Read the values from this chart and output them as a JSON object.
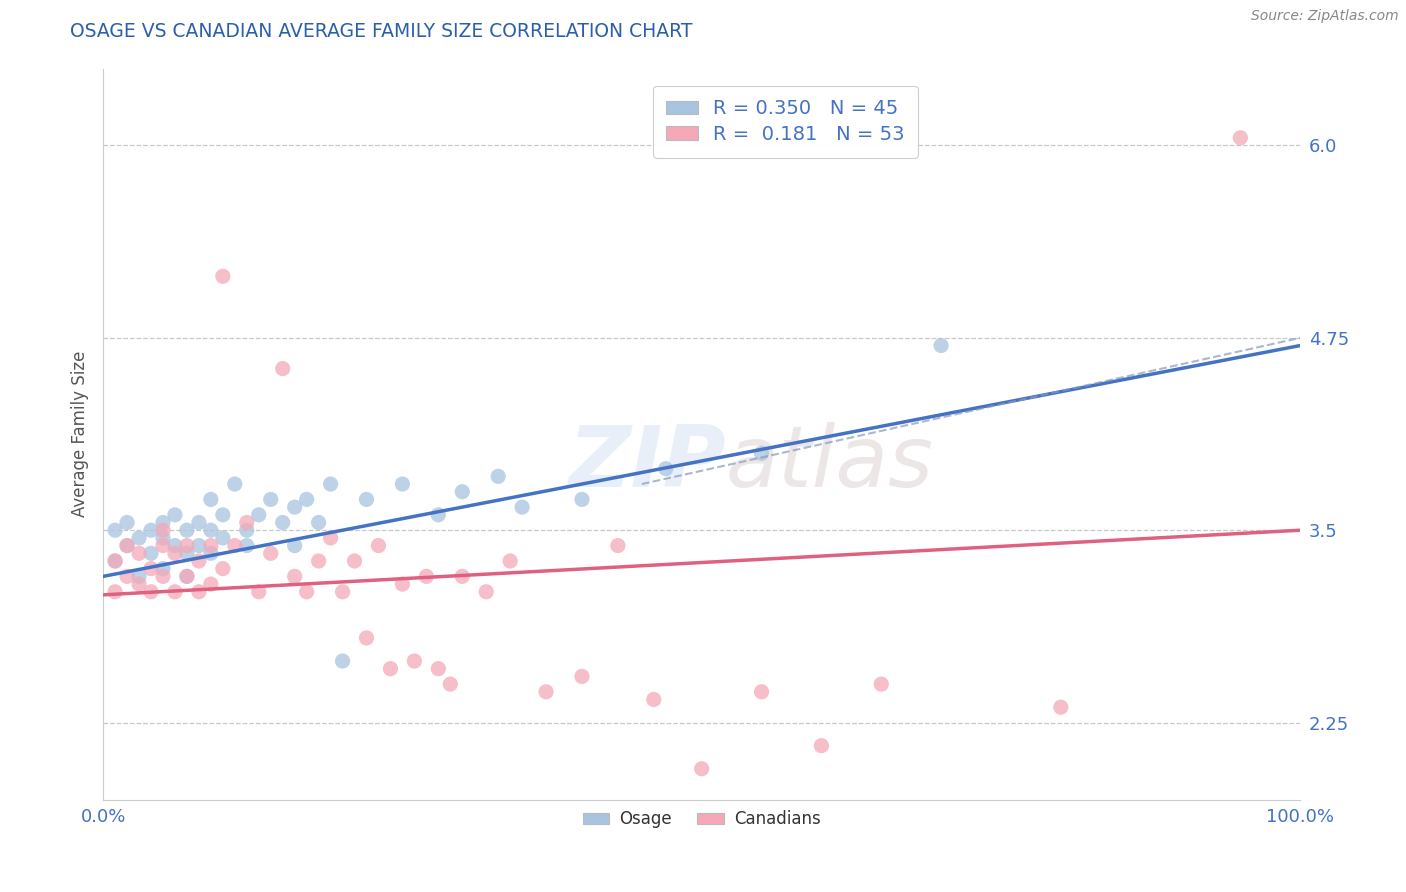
{
  "title": "OSAGE VS CANADIAN AVERAGE FAMILY SIZE CORRELATION CHART",
  "source": "Source: ZipAtlas.com",
  "ylabel": "Average Family Size",
  "xlim": [
    0.0,
    1.0
  ],
  "ylim": [
    1.75,
    6.5
  ],
  "yticks": [
    2.25,
    3.5,
    4.75,
    6.0
  ],
  "xtick_labels": [
    "0.0%",
    "100.0%"
  ],
  "watermark": "ZIPatlas",
  "osage_color": "#a8c4e0",
  "canadian_color": "#f4a8b8",
  "osage_line_color": "#4472c4",
  "canadian_line_color": "#e06080",
  "osage_R": 0.35,
  "osage_N": 45,
  "canadian_R": 0.181,
  "canadian_N": 53,
  "osage_x": [
    0.01,
    0.01,
    0.02,
    0.02,
    0.03,
    0.03,
    0.04,
    0.04,
    0.05,
    0.05,
    0.05,
    0.06,
    0.06,
    0.07,
    0.07,
    0.07,
    0.08,
    0.08,
    0.09,
    0.09,
    0.09,
    0.1,
    0.1,
    0.11,
    0.12,
    0.12,
    0.13,
    0.14,
    0.15,
    0.16,
    0.16,
    0.17,
    0.18,
    0.19,
    0.2,
    0.22,
    0.25,
    0.28,
    0.3,
    0.33,
    0.35,
    0.4,
    0.47,
    0.55,
    0.7
  ],
  "osage_y": [
    3.5,
    3.3,
    3.4,
    3.55,
    3.45,
    3.2,
    3.5,
    3.35,
    3.55,
    3.45,
    3.25,
    3.6,
    3.4,
    3.35,
    3.5,
    3.2,
    3.55,
    3.4,
    3.5,
    3.35,
    3.7,
    3.45,
    3.6,
    3.8,
    3.5,
    3.4,
    3.6,
    3.7,
    3.55,
    3.65,
    3.4,
    3.7,
    3.55,
    3.8,
    2.65,
    3.7,
    3.8,
    3.6,
    3.75,
    3.85,
    3.65,
    3.7,
    3.9,
    4.0,
    4.7
  ],
  "canadian_x": [
    0.01,
    0.01,
    0.02,
    0.02,
    0.03,
    0.03,
    0.04,
    0.04,
    0.05,
    0.05,
    0.05,
    0.06,
    0.06,
    0.07,
    0.07,
    0.08,
    0.08,
    0.09,
    0.09,
    0.1,
    0.1,
    0.11,
    0.12,
    0.13,
    0.14,
    0.15,
    0.16,
    0.17,
    0.18,
    0.19,
    0.2,
    0.21,
    0.22,
    0.23,
    0.24,
    0.25,
    0.26,
    0.27,
    0.28,
    0.29,
    0.3,
    0.32,
    0.34,
    0.37,
    0.4,
    0.43,
    0.46,
    0.5,
    0.55,
    0.6,
    0.65,
    0.8,
    0.95
  ],
  "canadian_y": [
    3.3,
    3.1,
    3.2,
    3.4,
    3.15,
    3.35,
    3.25,
    3.1,
    3.4,
    3.2,
    3.5,
    3.1,
    3.35,
    3.2,
    3.4,
    3.1,
    3.3,
    3.15,
    3.4,
    3.25,
    5.15,
    3.4,
    3.55,
    3.1,
    3.35,
    4.55,
    3.2,
    3.1,
    3.3,
    3.45,
    3.1,
    3.3,
    2.8,
    3.4,
    2.6,
    3.15,
    2.65,
    3.2,
    2.6,
    2.5,
    3.2,
    3.1,
    3.3,
    2.45,
    2.55,
    3.4,
    2.4,
    1.95,
    2.45,
    2.1,
    2.5,
    2.35,
    6.05
  ],
  "background_color": "#ffffff",
  "grid_color": "#bbbbbb",
  "title_color": "#2b5faa",
  "axis_label_color": "#555555",
  "tick_label_color": "#4472c4",
  "source_color": "#888888"
}
